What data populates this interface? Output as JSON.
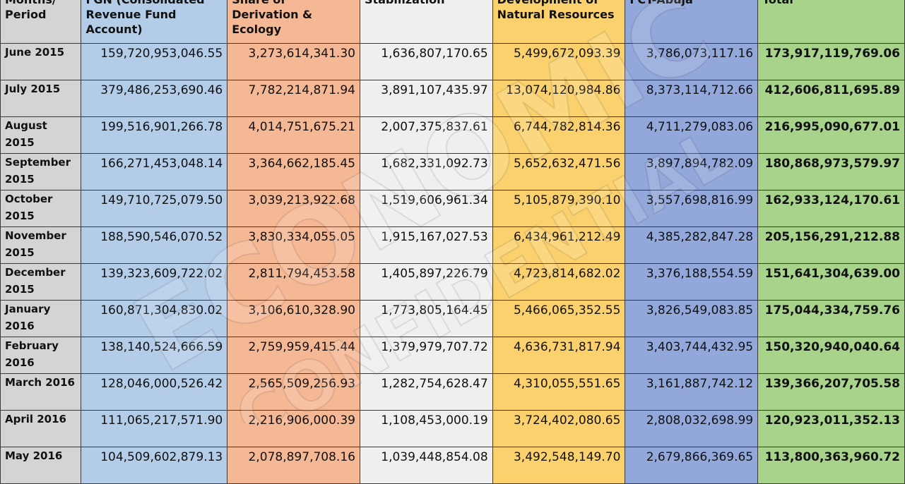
{
  "headers": [
    "Months/ Period",
    "FGN (Consolidated Revenue Fund Account)",
    "Share of Derivation & Ecology",
    "Stabilization",
    "Development of Natural Resources",
    "FCT-Abuja",
    "Total"
  ],
  "rows": [
    {
      "period": "June 2015",
      "fgn": "159,720,953,046.55",
      "derivation": "3,273,614,341.30",
      "stabilization": "1,636,807,170.65",
      "development": "5,499,672,093.39",
      "fct": "3,786,073,117.16",
      "total": "173,917,119,769.06"
    },
    {
      "period": "July 2015",
      "fgn": "379,486,253,690.46",
      "derivation": "7,782,214,871.94",
      "stabilization": "3,891,107,435.97",
      "development": "13,074,120,984.86",
      "fct": "8,373,114,712.66",
      "total": "412,606,811,695.89"
    },
    {
      "period": "August 2015",
      "fgn": "199,516,901,266.78",
      "derivation": "4,014,751,675.21",
      "stabilization": "2,007,375,837.61",
      "development": "6,744,782,814.36",
      "fct": "4,711,279,083.06",
      "total": "216,995,090,677.01"
    },
    {
      "period": "September 2015",
      "fgn": "166,271,453,048.14",
      "derivation": "3,364,662,185.45",
      "stabilization": "1,682,331,092.73",
      "development": "5,652,632,471.56",
      "fct": "3,897,894,782.09",
      "total": "180,868,973,579.97"
    },
    {
      "period": "October 2015",
      "fgn": "149,710,725,079.50",
      "derivation": "3,039,213,922.68",
      "stabilization": "1,519,606,961.34",
      "development": "5,105,879,390.10",
      "fct": "3,557,698,816.99",
      "total": "162,933,124,170.61"
    },
    {
      "period": "November 2015",
      "fgn": "188,590,546,070.52",
      "derivation": "3,830,334,055.05",
      "stabilization": "1,915,167,027.53",
      "development": "6,434,961,212.49",
      "fct": "4,385,282,847.28",
      "total": "205,156,291,212.88"
    },
    {
      "period": "December 2015",
      "fgn": "139,323,609,722.02",
      "derivation": "2,811,794,453.58",
      "stabilization": "1,405,897,226.79",
      "development": "4,723,814,682.02",
      "fct": "3,376,188,554.59",
      "total": "151,641,304,639.00"
    },
    {
      "period": "January 2016",
      "fgn": "160,871,304,830.02",
      "derivation": "3,106,610,328.90",
      "stabilization": "1,773,805,164.45",
      "development": "5,466,065,352.55",
      "fct": "3,826,549,083.85",
      "total": "175,044,334,759.76"
    },
    {
      "period": "February 2016",
      "fgn": "138,140,524,666.59",
      "derivation": "2,759,959,415.44",
      "stabilization": "1,379,979,707.72",
      "development": "4,636,731,817.94",
      "fct": "3,403,744,432.95",
      "total": "150,320,940,040.64"
    },
    {
      "period": "March 2016",
      "fgn": "128,046,000,526.42",
      "derivation": "2,565,509,256.93",
      "stabilization": "1,282,754,628.47",
      "development": "4,310,055,551.65",
      "fct": "3,161,887,742.12",
      "total": "139,366,207,705.58"
    },
    {
      "period": "April 2016",
      "fgn": "111,065,217,571.90",
      "derivation": "2,216,906,000.39",
      "stabilization": "1,108,453,000.19",
      "development": "3,724,402,080.65",
      "fct": "2,808,032,698.99",
      "total": "120,923,011,352.13"
    },
    {
      "period": "May 2016",
      "fgn": "104,509,602,879.13",
      "derivation": "2,078,897,708.16",
      "stabilization": "1,039,448,854.08",
      "development": "3,492,548,149.70",
      "fct": "2,679,866,369.65",
      "total": "113,800,363,960.72"
    }
  ],
  "watermark": {
    "line1": "ECONOMIC",
    "line2": "CONFIDENTIAL"
  }
}
